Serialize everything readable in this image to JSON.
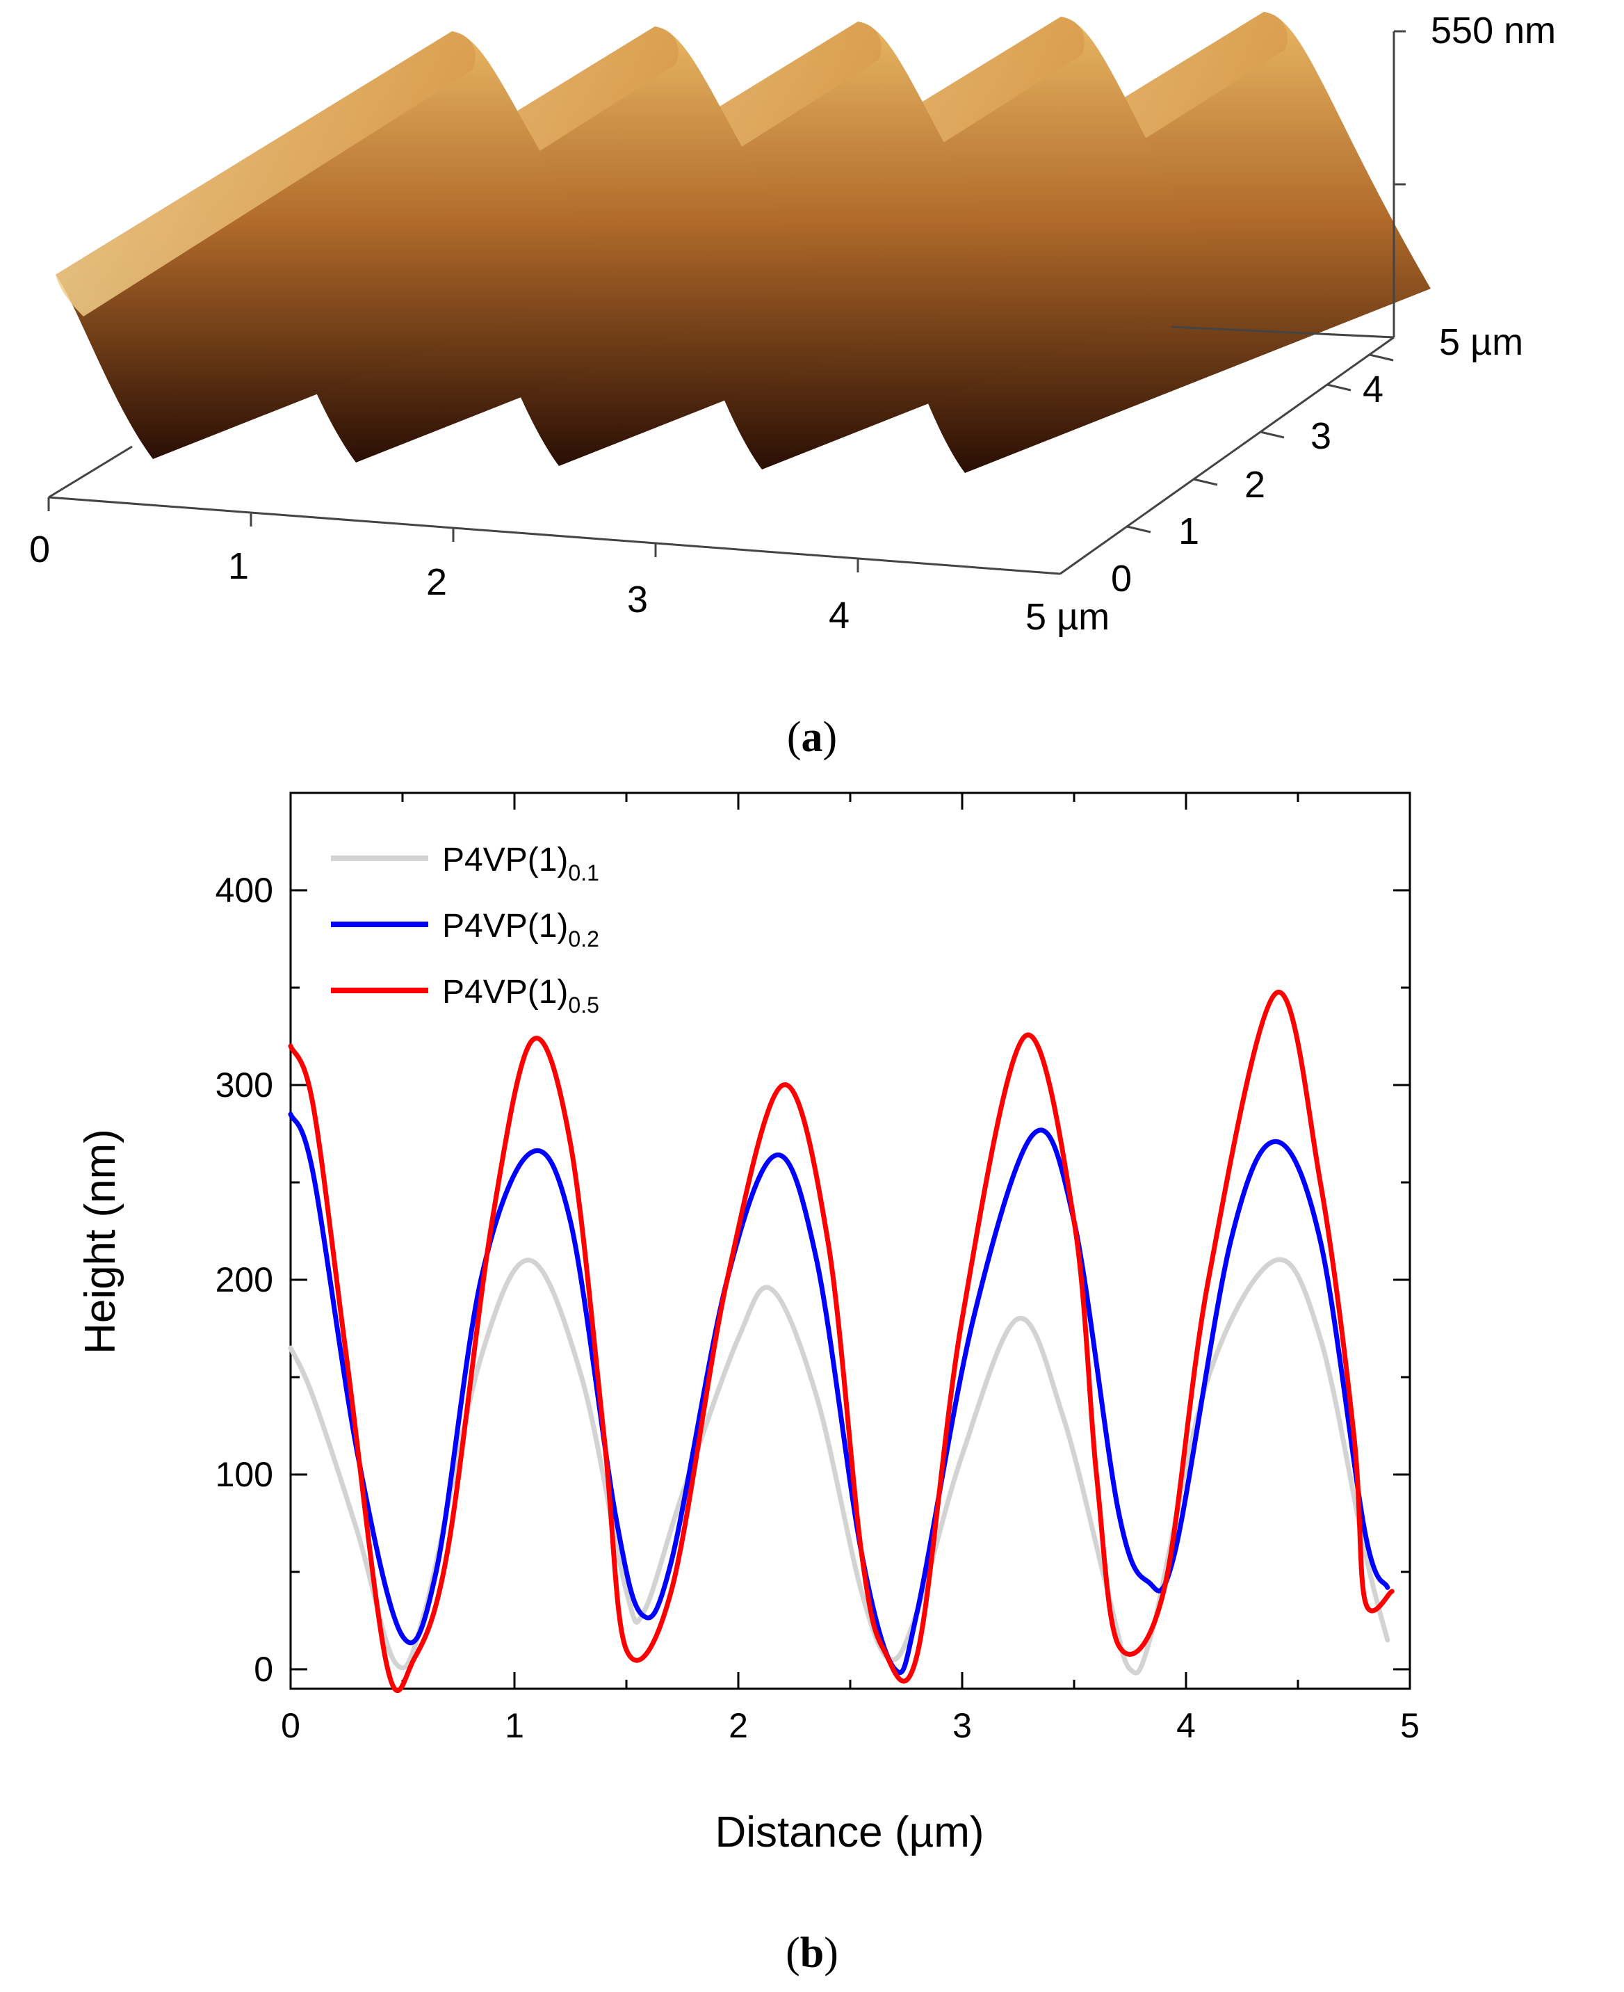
{
  "panel_a": {
    "label": "a",
    "z_axis_label": "550 nm",
    "y_axis_end_label": "5 µm",
    "x_axis_end_label": "5 µm",
    "x_ticks": [
      "0",
      "1",
      "2",
      "3",
      "4"
    ],
    "y_ticks": [
      "0",
      "1",
      "2",
      "3",
      "4"
    ],
    "ridge_count": 5,
    "colors": {
      "top": "#e8b764",
      "mid": "#b06a2a",
      "bottom": "#2a0e04"
    }
  },
  "panel_b": {
    "label": "b"
  },
  "chart_data": {
    "type": "line",
    "xlabel": "Distance (µm)",
    "ylabel": "Height (nm)",
    "xlim": [
      0,
      5
    ],
    "ylim": [
      -10,
      450
    ],
    "x_ticks": [
      "0",
      "1",
      "2",
      "3",
      "4",
      "5"
    ],
    "y_ticks": [
      "0",
      "100",
      "200",
      "300",
      "400"
    ],
    "legend_position": "top-left",
    "series": [
      {
        "name": "P4VP(1)",
        "subscript": "0.1",
        "color": "#d3d3d3",
        "points": [
          [
            0,
            165
          ],
          [
            0.1,
            140
          ],
          [
            0.3,
            70
          ],
          [
            0.47,
            3
          ],
          [
            0.6,
            30
          ],
          [
            0.85,
            160
          ],
          [
            1.07,
            210
          ],
          [
            1.3,
            150
          ],
          [
            1.5,
            40
          ],
          [
            1.58,
            30
          ],
          [
            1.75,
            90
          ],
          [
            2.0,
            170
          ],
          [
            2.15,
            195
          ],
          [
            2.35,
            140
          ],
          [
            2.55,
            40
          ],
          [
            2.68,
            5
          ],
          [
            2.8,
            30
          ],
          [
            3.0,
            110
          ],
          [
            3.25,
            180
          ],
          [
            3.45,
            130
          ],
          [
            3.65,
            40
          ],
          [
            3.75,
            0
          ],
          [
            3.85,
            20
          ],
          [
            4.1,
            150
          ],
          [
            4.4,
            210
          ],
          [
            4.6,
            170
          ],
          [
            4.8,
            60
          ],
          [
            4.9,
            15
          ]
        ]
      },
      {
        "name": "P4VP(1)",
        "subscript": "0.2",
        "color": "#0000ff",
        "points": [
          [
            0,
            285
          ],
          [
            0.1,
            255
          ],
          [
            0.3,
            110
          ],
          [
            0.5,
            17
          ],
          [
            0.65,
            50
          ],
          [
            0.85,
            200
          ],
          [
            1.07,
            265
          ],
          [
            1.25,
            230
          ],
          [
            1.45,
            80
          ],
          [
            1.57,
            28
          ],
          [
            1.7,
            55
          ],
          [
            1.95,
            200
          ],
          [
            2.17,
            264
          ],
          [
            2.35,
            210
          ],
          [
            2.55,
            60
          ],
          [
            2.7,
            0
          ],
          [
            2.8,
            30
          ],
          [
            3.05,
            180
          ],
          [
            3.32,
            275
          ],
          [
            3.5,
            230
          ],
          [
            3.7,
            80
          ],
          [
            3.83,
            45
          ],
          [
            3.95,
            60
          ],
          [
            4.2,
            220
          ],
          [
            4.4,
            271
          ],
          [
            4.6,
            220
          ],
          [
            4.8,
            70
          ],
          [
            4.9,
            42
          ]
        ]
      },
      {
        "name": "P4VP(1)",
        "subscript": "0.5",
        "color": "#ff0000",
        "points": [
          [
            0,
            320
          ],
          [
            0.1,
            290
          ],
          [
            0.25,
            160
          ],
          [
            0.43,
            2
          ],
          [
            0.55,
            5
          ],
          [
            0.7,
            60
          ],
          [
            0.9,
            230
          ],
          [
            1.08,
            323
          ],
          [
            1.25,
            270
          ],
          [
            1.4,
            120
          ],
          [
            1.5,
            10
          ],
          [
            1.7,
            40
          ],
          [
            1.95,
            200
          ],
          [
            2.2,
            300
          ],
          [
            2.4,
            220
          ],
          [
            2.55,
            60
          ],
          [
            2.65,
            10
          ],
          [
            2.8,
            8
          ],
          [
            3.0,
            180
          ],
          [
            3.28,
            325
          ],
          [
            3.5,
            230
          ],
          [
            3.6,
            100
          ],
          [
            3.7,
            12
          ],
          [
            3.9,
            40
          ],
          [
            4.1,
            200
          ],
          [
            4.4,
            347
          ],
          [
            4.6,
            250
          ],
          [
            4.75,
            120
          ],
          [
            4.8,
            35
          ],
          [
            4.92,
            40
          ]
        ]
      }
    ]
  }
}
